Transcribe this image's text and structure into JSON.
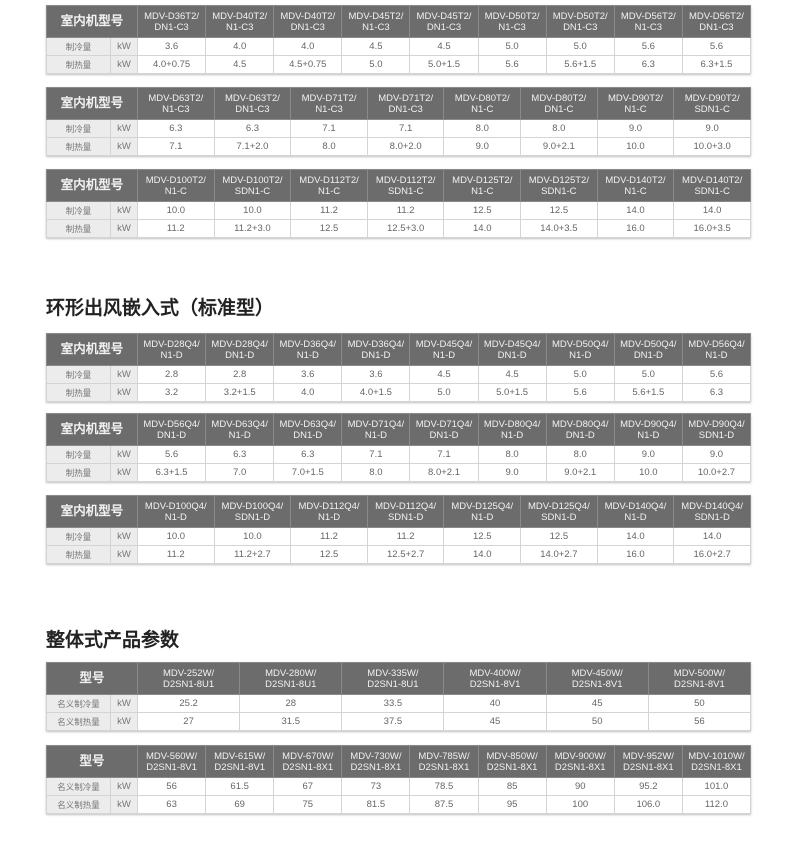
{
  "headings": [
    "环形出风嵌入式（标准型）",
    "整体式产品参数"
  ],
  "tables": [
    {
      "head": "室内机型号",
      "unit": "kW",
      "models": [
        "MDV-D36T2/\nDN1-C3",
        "MDV-D40T2/\nN1-C3",
        "MDV-D40T2/\nDN1-C3",
        "MDV-D45T2/\nN1-C3",
        "MDV-D45T2/\nDN1-C3",
        "MDV-D50T2/\nN1-C3",
        "MDV-D50T2/\nDN1-C3",
        "MDV-D56T2/\nN1-C3",
        "MDV-D56T2/\nDN1-C3"
      ],
      "rows": [
        {
          "label": "制冷量",
          "values": [
            "3.6",
            "4.0",
            "4.0",
            "4.5",
            "4.5",
            "5.0",
            "5.0",
            "5.6",
            "5.6"
          ]
        },
        {
          "label": "制热量",
          "values": [
            "4.0+0.75",
            "4.5",
            "4.5+0.75",
            "5.0",
            "5.0+1.5",
            "5.6",
            "5.6+1.5",
            "6.3",
            "6.3+1.5"
          ]
        }
      ]
    },
    {
      "head": "室内机型号",
      "unit": "kW",
      "models": [
        "MDV-D63T2/\nN1-C3",
        "MDV-D63T2/\nDN1-C3",
        "MDV-D71T2/\nN1-C3",
        "MDV-D71T2/\nDN1-C3",
        "MDV-D80T2/\nN1-C",
        "MDV-D80T2/\nDN1-C",
        "MDV-D90T2/\nN1-C",
        "MDV-D90T2/\nSDN1-C"
      ],
      "rows": [
        {
          "label": "制冷量",
          "values": [
            "6.3",
            "6.3",
            "7.1",
            "7.1",
            "8.0",
            "8.0",
            "9.0",
            "9.0"
          ]
        },
        {
          "label": "制热量",
          "values": [
            "7.1",
            "7.1+2.0",
            "8.0",
            "8.0+2.0",
            "9.0",
            "9.0+2.1",
            "10.0",
            "10.0+3.0"
          ]
        }
      ]
    },
    {
      "head": "室内机型号",
      "unit": "kW",
      "models": [
        "MDV-D100T2/\nN1-C",
        "MDV-D100T2/\nSDN1-C",
        "MDV-D112T2/\nN1-C",
        "MDV-D112T2/\nSDN1-C",
        "MDV-D125T2/\nN1-C",
        "MDV-D125T2/\nSDN1-C",
        "MDV-D140T2/\nN1-C",
        "MDV-D140T2/\nSDN1-C"
      ],
      "rows": [
        {
          "label": "制冷量",
          "values": [
            "10.0",
            "10.0",
            "11.2",
            "11.2",
            "12.5",
            "12.5",
            "14.0",
            "14.0"
          ]
        },
        {
          "label": "制热量",
          "values": [
            "11.2",
            "11.2+3.0",
            "12.5",
            "12.5+3.0",
            "14.0",
            "14.0+3.5",
            "16.0",
            "16.0+3.5"
          ]
        }
      ]
    },
    {
      "head": "室内机型号",
      "unit": "kW",
      "models": [
        "MDV-D28Q4/\nN1-D",
        "MDV-D28Q4/\nDN1-D",
        "MDV-D36Q4/\nN1-D",
        "MDV-D36Q4/\nDN1-D",
        "MDV-D45Q4/\nN1-D",
        "MDV-D45Q4/\nDN1-D",
        "MDV-D50Q4/\nN1-D",
        "MDV-D50Q4/\nDN1-D",
        "MDV-D56Q4/\nN1-D"
      ],
      "rows": [
        {
          "label": "制冷量",
          "values": [
            "2.8",
            "2.8",
            "3.6",
            "3.6",
            "4.5",
            "4.5",
            "5.0",
            "5.0",
            "5.6"
          ]
        },
        {
          "label": "制热量",
          "values": [
            "3.2",
            "3.2+1.5",
            "4.0",
            "4.0+1.5",
            "5.0",
            "5.0+1.5",
            "5.6",
            "5.6+1.5",
            "6.3"
          ]
        }
      ]
    },
    {
      "head": "室内机型号",
      "unit": "kW",
      "models": [
        "MDV-D56Q4/\nDN1-D",
        "MDV-D63Q4/\nN1-D",
        "MDV-D63Q4/\nDN1-D",
        "MDV-D71Q4/\nN1-D",
        "MDV-D71Q4/\nDN1-D",
        "MDV-D80Q4/\nN1-D",
        "MDV-D80Q4/\nDN1-D",
        "MDV-D90Q4/\nN1-D",
        "MDV-D90Q4/\nSDN1-D"
      ],
      "rows": [
        {
          "label": "制冷量",
          "values": [
            "5.6",
            "6.3",
            "6.3",
            "7.1",
            "7.1",
            "8.0",
            "8.0",
            "9.0",
            "9.0"
          ]
        },
        {
          "label": "制热量",
          "values": [
            "6.3+1.5",
            "7.0",
            "7.0+1.5",
            "8.0",
            "8.0+2.1",
            "9.0",
            "9.0+2.1",
            "10.0",
            "10.0+2.7"
          ]
        }
      ]
    },
    {
      "head": "室内机型号",
      "unit": "kW",
      "models": [
        "MDV-D100Q4/\nN1-D",
        "MDV-D100Q4/\nSDN1-D",
        "MDV-D112Q4/\nN1-D",
        "MDV-D112Q4/\nSDN1-D",
        "MDV-D125Q4/\nN1-D",
        "MDV-D125Q4/\nSDN1-D",
        "MDV-D140Q4/\nN1-D",
        "MDV-D140Q4/\nSDN1-D"
      ],
      "rows": [
        {
          "label": "制冷量",
          "values": [
            "10.0",
            "10.0",
            "11.2",
            "11.2",
            "12.5",
            "12.5",
            "14.0",
            "14.0"
          ]
        },
        {
          "label": "制热量",
          "values": [
            "11.2",
            "11.2+2.7",
            "12.5",
            "12.5+2.7",
            "14.0",
            "14.0+2.7",
            "16.0",
            "16.0+2.7"
          ]
        }
      ]
    },
    {
      "head": "型号",
      "unit": "kW",
      "models": [
        "MDV-252W/\nD2SN1-8U1",
        "MDV-280W/\nD2SN1-8U1",
        "MDV-335W/\nD2SN1-8U1",
        "MDV-400W/\nD2SN1-8V1",
        "MDV-450W/\nD2SN1-8V1",
        "MDV-500W/\nD2SN1-8V1"
      ],
      "rows": [
        {
          "label": "名义制冷量",
          "values": [
            "25.2",
            "28",
            "33.5",
            "40",
            "45",
            "50"
          ]
        },
        {
          "label": "名义制热量",
          "values": [
            "27",
            "31.5",
            "37.5",
            "45",
            "50",
            "56"
          ]
        }
      ]
    },
    {
      "head": "型号",
      "unit": "kW",
      "models": [
        "MDV-560W/\nD2SN1-8V1",
        "MDV-615W/\nD2SN1-8V1",
        "MDV-670W/\nD2SN1-8X1",
        "MDV-730W/\nD2SN1-8X1",
        "MDV-785W/\nD2SN1-8X1",
        "MDV-850W/\nD2SN1-8X1",
        "MDV-900W/\nD2SN1-8X1",
        "MDV-952W/\nD2SN1-8X1",
        "MDV-1010W/\nD2SN1-8X1"
      ],
      "rows": [
        {
          "label": "名义制冷量",
          "values": [
            "56",
            "61.5",
            "67",
            "73",
            "78.5",
            "85",
            "90",
            "95.2",
            "101.0"
          ]
        },
        {
          "label": "名义制热量",
          "values": [
            "63",
            "69",
            "75",
            "81.5",
            "87.5",
            "95",
            "100",
            "106.0",
            "112.0"
          ]
        }
      ]
    }
  ]
}
